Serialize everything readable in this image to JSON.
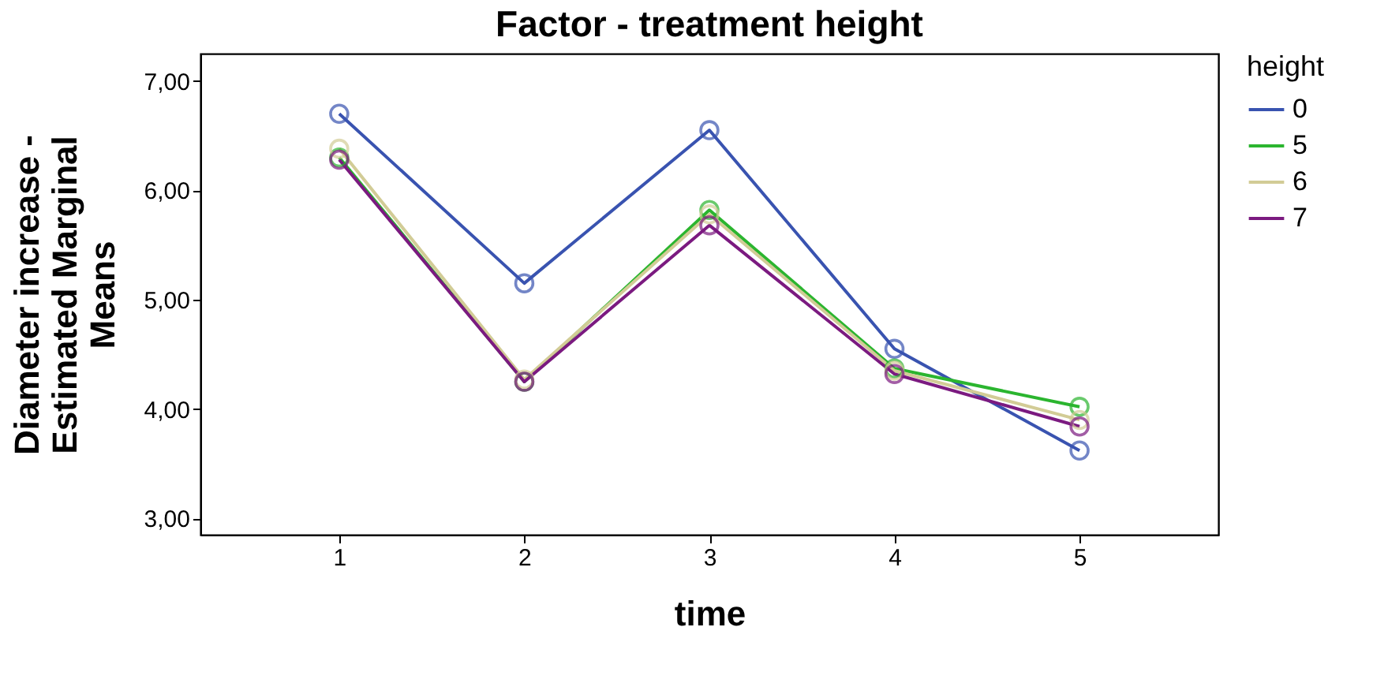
{
  "chart_data": {
    "type": "line",
    "title": "Factor - treatment height",
    "xlabel": "time",
    "ylabel": "Diameter increase - Estimated Marginal Means",
    "legend_title": "height",
    "categories": [
      "1",
      "2",
      "3",
      "4",
      "5"
    ],
    "series": [
      {
        "name": "0",
        "color": "#3953b0",
        "values": [
          6.7,
          5.15,
          6.55,
          4.55,
          3.62
        ]
      },
      {
        "name": "5",
        "color": "#2bb52f",
        "values": [
          6.3,
          4.25,
          5.82,
          4.37,
          4.02
        ]
      },
      {
        "name": "6",
        "color": "#d2cc96",
        "values": [
          6.38,
          4.27,
          5.78,
          4.35,
          3.9
        ]
      },
      {
        "name": "7",
        "color": "#7b1a80",
        "values": [
          6.28,
          4.25,
          5.68,
          4.32,
          3.84
        ]
      }
    ],
    "ylim": [
      2.85,
      7.25
    ],
    "yticks": [
      {
        "value": 3,
        "label": "3,00"
      },
      {
        "value": 4,
        "label": "4,00"
      },
      {
        "value": 5,
        "label": "5,00"
      },
      {
        "value": 6,
        "label": "6,00"
      },
      {
        "value": 7,
        "label": "7,00"
      }
    ],
    "grid": false,
    "legend": "top right",
    "marker": "circle",
    "line_style": "solid"
  }
}
